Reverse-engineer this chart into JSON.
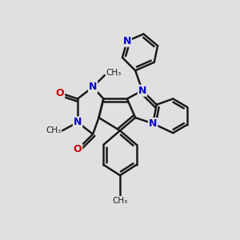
{
  "background_color": "#e0e0e0",
  "bond_color": "#1a1a1a",
  "n_color": "#0000cc",
  "o_color": "#cc0000",
  "bond_width": 1.8,
  "dbo": 0.12,
  "figsize": [
    3.0,
    3.0
  ],
  "dpi": 100,
  "xlim": [
    0,
    10
  ],
  "ylim": [
    0,
    10
  ]
}
